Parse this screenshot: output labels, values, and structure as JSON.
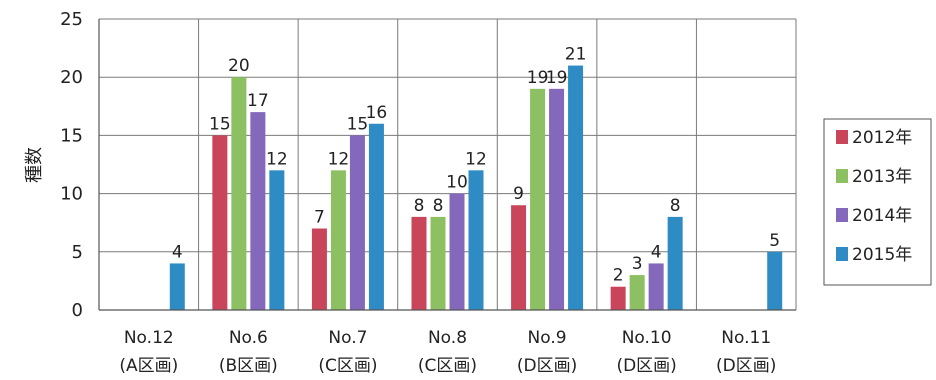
{
  "chart_data": {
    "type": "bar",
    "title": "",
    "xlabel": "",
    "ylabel": "種数",
    "ylim": [
      0,
      25
    ],
    "yticks": [
      0,
      5,
      10,
      15,
      20,
      25
    ],
    "grid": true,
    "legend_position": "right",
    "categories": [
      [
        "No.12",
        "(A区画)"
      ],
      [
        "No.6",
        "(B区画)"
      ],
      [
        "No.7",
        "(C区画)"
      ],
      [
        "No.8",
        "(C区画)"
      ],
      [
        "No.9",
        "(D区画)"
      ],
      [
        "No.10",
        "(D区画)"
      ],
      [
        "No.11",
        "(D区画)"
      ]
    ],
    "series": [
      {
        "name": "2012年",
        "color": "#c8455a",
        "values": [
          null,
          15,
          7,
          8,
          9,
          2,
          null
        ]
      },
      {
        "name": "2013年",
        "color": "#8dc063",
        "values": [
          null,
          20,
          12,
          8,
          19,
          3,
          null
        ]
      },
      {
        "name": "2014年",
        "color": "#8468bb",
        "values": [
          null,
          17,
          15,
          10,
          19,
          4,
          null
        ]
      },
      {
        "name": "2015年",
        "color": "#2e8bc4",
        "values": [
          4,
          12,
          16,
          12,
          21,
          8,
          5
        ]
      }
    ]
  }
}
